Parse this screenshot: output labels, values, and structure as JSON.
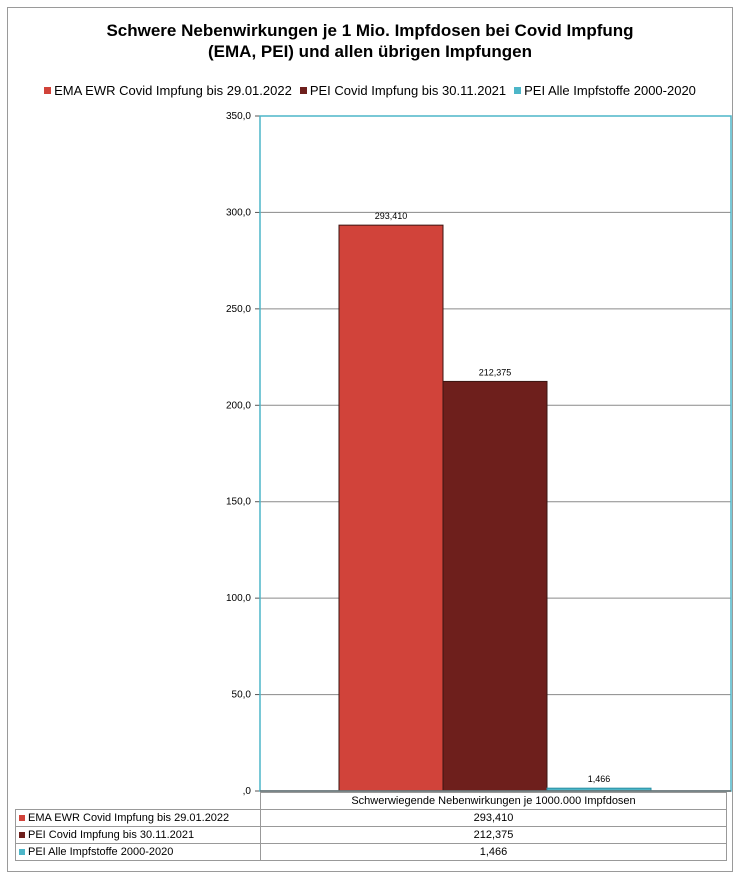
{
  "chart_data": {
    "type": "bar",
    "title_lines": [
      "Schwere Nebenwirkungen je 1 Mio. Impfdosen bei Covid Impfung",
      "(EMA, PEI) und allen übrigen Impfungen"
    ],
    "categories": [
      "Schwerwiegende Nebenwirkungen je 1000.000 Impfdosen"
    ],
    "series": [
      {
        "name": "EMA EWR Covid Impfung bis 29.01.2022",
        "values": [
          293.41
        ],
        "color": "#d1433a",
        "label": "293,410"
      },
      {
        "name": "PEI Covid Impfung bis 30.11.2021",
        "values": [
          212.375
        ],
        "color": "#6e1f1c",
        "label": "212,375"
      },
      {
        "name": "PEI Alle Impfstoffe 2000-2020",
        "values": [
          1.466
        ],
        "color": "#4db6c8",
        "label": "1,466"
      }
    ],
    "y_ticks": [
      "350,0",
      "300,0",
      "250,0",
      "200,0",
      "150,0",
      "100,0",
      "50,0",
      ",0"
    ],
    "ylim": [
      0,
      350
    ],
    "grid": true,
    "legend_position": "top",
    "data_table": true,
    "plot_border_color": "#4db6c8"
  }
}
